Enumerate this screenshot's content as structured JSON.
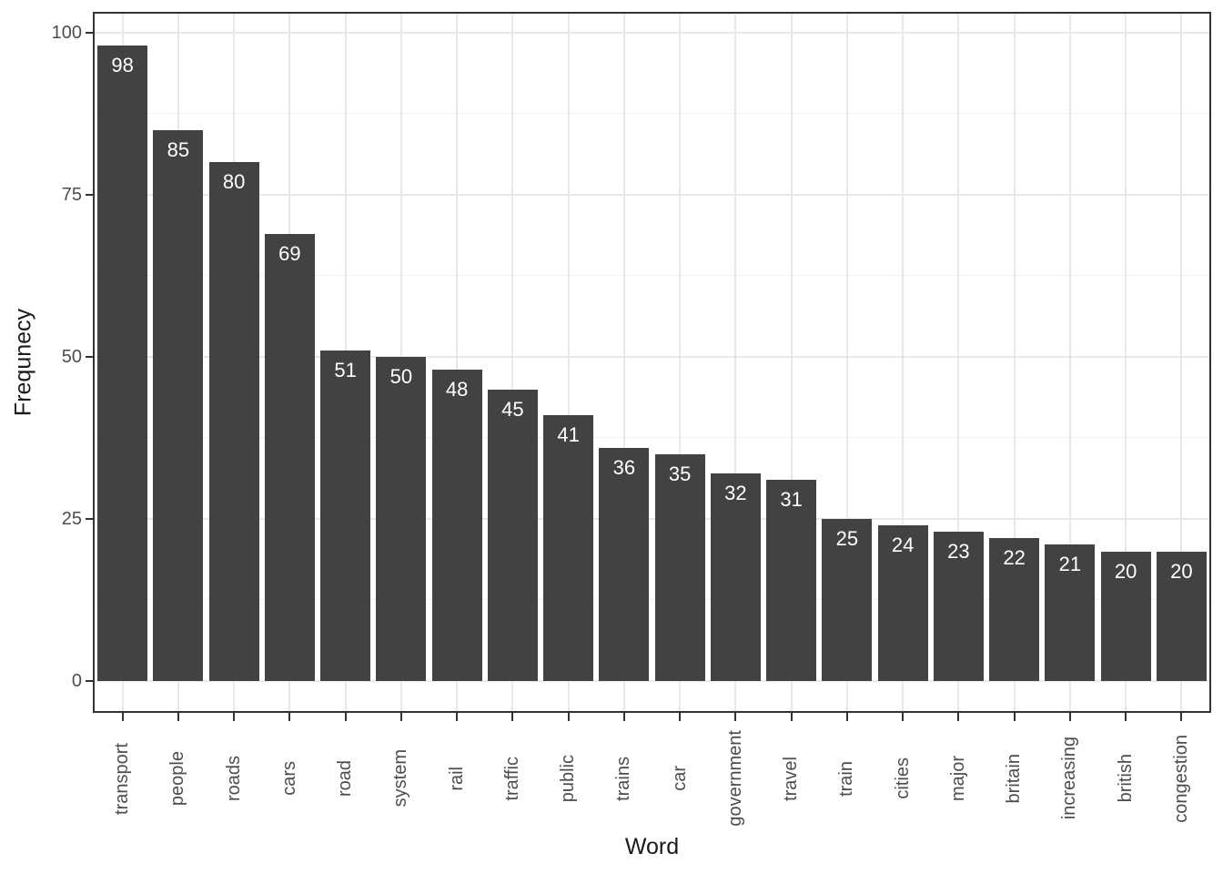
{
  "chart_data": {
    "type": "bar",
    "title": "",
    "xlabel": "Word",
    "ylabel": "Frequnecy",
    "categories": [
      "transport",
      "people",
      "roads",
      "cars",
      "road",
      "system",
      "rail",
      "traffic",
      "public",
      "trains",
      "car",
      "government",
      "travel",
      "train",
      "cities",
      "major",
      "britain",
      "increasing",
      "british",
      "congestion"
    ],
    "values": [
      98,
      85,
      80,
      69,
      51,
      50,
      48,
      45,
      41,
      36,
      35,
      32,
      31,
      25,
      24,
      23,
      22,
      21,
      20,
      20
    ],
    "bar_value_labels": [
      "98",
      "85",
      "80",
      "69",
      "51",
      "50",
      "48",
      "45",
      "41",
      "36",
      "35",
      "32",
      "31",
      "25",
      "24",
      "23",
      "22",
      "21",
      "20",
      "20"
    ],
    "y_ticks": [
      0,
      25,
      50,
      75,
      100
    ],
    "y_minor_ticks": [
      12.5,
      37.5,
      62.5,
      87.5
    ],
    "ylim": [
      0,
      100
    ],
    "legend_position": "none",
    "grid": "on"
  },
  "style": {
    "bar_fill": "#424242",
    "bar_value_text": "#FFFFFF",
    "grid_major": "#E8E8E8",
    "grid_minor": "#F1F1F1",
    "axis_text": "#4D4D4D",
    "axis_title": "#1A1A1A",
    "panel_border": "#333333",
    "tick_mark": "#333333",
    "background": "#FFFFFF"
  }
}
